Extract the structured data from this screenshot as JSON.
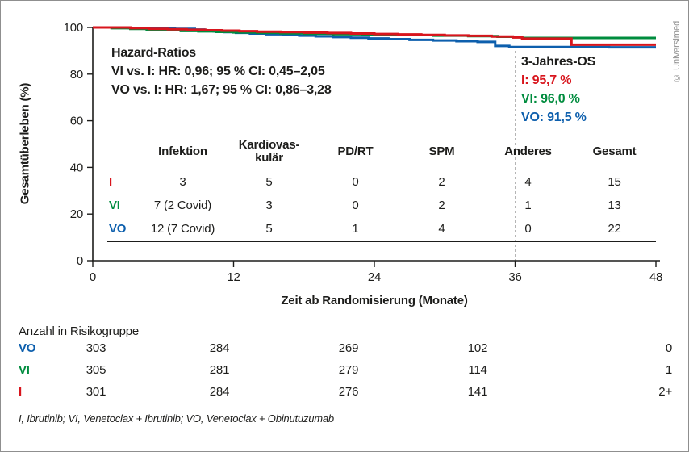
{
  "copyright": "© Universimed",
  "colors": {
    "I": "#d8151d",
    "VI": "#008c3e",
    "VO": "#0d5fad",
    "axis": "#1d1d1b",
    "dashed": "#b5b5b5"
  },
  "axes": {
    "y_label": "Gesamtüberleben (%)",
    "x_label": "Zeit ab Randomisierung (Monate)"
  },
  "annotations": {
    "hazard": {
      "title": "Hazard-Ratios",
      "line1": "VI vs. I: HR: 0,96; 95 % CI: 0,45–2,05",
      "line2": "VO vs. I: HR: 1,67; 95 % CI: 0,86–3,28"
    },
    "os3": {
      "title": "3-Jahres-OS",
      "i": "I: 95,7 %",
      "vi": "VI: 96,0 %",
      "vo": "VO: 91,5 %"
    }
  },
  "cause_table": {
    "headers": [
      "Infektion",
      "Kardiovas-\nkulär",
      "PD/RT",
      "SPM",
      "Anderes",
      "Gesamt"
    ],
    "rows": [
      {
        "label": "I",
        "values": [
          "3",
          "5",
          "0",
          "2",
          "4",
          "15"
        ]
      },
      {
        "label": "VI",
        "values": [
          "7 (2 Covid)",
          "3",
          "0",
          "2",
          "1",
          "13"
        ]
      },
      {
        "label": "VO",
        "values": [
          "12 (7 Covid)",
          "5",
          "1",
          "4",
          "0",
          "22"
        ]
      }
    ]
  },
  "risk_table": {
    "title": "Anzahl in Risikogruppe",
    "rows": [
      {
        "label": "VO",
        "values": [
          "303",
          "284",
          "269",
          "102",
          "0"
        ]
      },
      {
        "label": "VI",
        "values": [
          "305",
          "281",
          "279",
          "114",
          "1"
        ]
      },
      {
        "label": "I",
        "values": [
          "301",
          "284",
          "276",
          "141",
          "2+"
        ]
      }
    ]
  },
  "footnote": "I, Ibrutinib; VI, Venetoclax + Ibrutinib; VO, Venetoclax + Obinutuzumab",
  "chart_data": {
    "type": "line",
    "subtype": "kaplan-meier-step",
    "title": "",
    "xlabel": "Zeit ab Randomisierung (Monate)",
    "ylabel": "Gesamtüberleben (%)",
    "xlim": [
      0,
      48
    ],
    "ylim": [
      0,
      100
    ],
    "x_ticks": [
      0,
      12,
      24,
      36,
      48
    ],
    "y_ticks": [
      100,
      80,
      60,
      40,
      20,
      0
    ],
    "grid": false,
    "reference_line_x": 36,
    "three_year_os": {
      "I": 95.7,
      "VI": 96.0,
      "VO": 91.5
    },
    "hazard_ratios": [
      {
        "comparison": "VI vs. I",
        "hr": 0.96,
        "ci95": [
          0.45,
          2.05
        ]
      },
      {
        "comparison": "VO vs. I",
        "hr": 1.67,
        "ci95": [
          0.86,
          3.28
        ]
      }
    ],
    "series": [
      {
        "name": "VO",
        "color": "#0d5fad",
        "points": [
          [
            0,
            100
          ],
          [
            3,
            99.8
          ],
          [
            5,
            99.6
          ],
          [
            7,
            99.4
          ],
          [
            8.7,
            99.1
          ],
          [
            9.5,
            98.7
          ],
          [
            10.3,
            98.3
          ],
          [
            11.2,
            98.0
          ],
          [
            12.2,
            97.7
          ],
          [
            13.4,
            97.4
          ],
          [
            14.8,
            97.1
          ],
          [
            16.2,
            96.8
          ],
          [
            17.6,
            96.5
          ],
          [
            19,
            96.2
          ],
          [
            20.5,
            95.9
          ],
          [
            22,
            95.6
          ],
          [
            23.5,
            95.3
          ],
          [
            25.2,
            95.0
          ],
          [
            27,
            94.7
          ],
          [
            29,
            94.4
          ],
          [
            31,
            94.1
          ],
          [
            32.8,
            93.8
          ],
          [
            34.3,
            92.1
          ],
          [
            35.5,
            91.6
          ],
          [
            44,
            91.5
          ],
          [
            48,
            91.5
          ]
        ]
      },
      {
        "name": "VI",
        "color": "#008c3e",
        "points": [
          [
            0,
            100
          ],
          [
            1.6,
            99.7
          ],
          [
            3.2,
            99.4
          ],
          [
            4.6,
            99.1
          ],
          [
            6,
            98.8
          ],
          [
            7.5,
            98.5
          ],
          [
            9,
            98.3
          ],
          [
            10.5,
            98.1
          ],
          [
            12,
            97.9
          ],
          [
            14,
            97.7
          ],
          [
            16,
            97.5
          ],
          [
            18,
            97.3
          ],
          [
            20.5,
            97.1
          ],
          [
            23,
            96.9
          ],
          [
            26,
            96.7
          ],
          [
            29,
            96.5
          ],
          [
            32,
            96.3
          ],
          [
            34.5,
            96.0
          ],
          [
            36.6,
            95.5
          ],
          [
            48,
            95.5
          ]
        ]
      },
      {
        "name": "I",
        "color": "#d8151d",
        "points": [
          [
            0,
            100
          ],
          [
            2.3,
            100
          ],
          [
            3.2,
            99.7
          ],
          [
            4.8,
            99.4
          ],
          [
            6.4,
            99.2
          ],
          [
            8,
            99.0
          ],
          [
            9.6,
            98.8
          ],
          [
            11,
            98.6
          ],
          [
            12.5,
            98.4
          ],
          [
            14,
            98.2
          ],
          [
            16,
            98.0
          ],
          [
            18,
            97.8
          ],
          [
            20,
            97.6
          ],
          [
            22,
            97.4
          ],
          [
            24,
            97.2
          ],
          [
            26,
            97.0
          ],
          [
            28,
            96.8
          ],
          [
            30,
            96.6
          ],
          [
            32,
            96.4
          ],
          [
            34,
            96.1
          ],
          [
            35.8,
            95.7
          ],
          [
            36.6,
            95.2
          ],
          [
            40.8,
            92.6
          ],
          [
            48,
            92.6
          ]
        ]
      }
    ],
    "number_at_risk": {
      "times": [
        0,
        12,
        24,
        36,
        48
      ],
      "VO": [
        303,
        284,
        269,
        102,
        0
      ],
      "VI": [
        305,
        281,
        279,
        114,
        1
      ],
      "I": [
        301,
        284,
        276,
        141,
        "2+"
      ]
    }
  }
}
